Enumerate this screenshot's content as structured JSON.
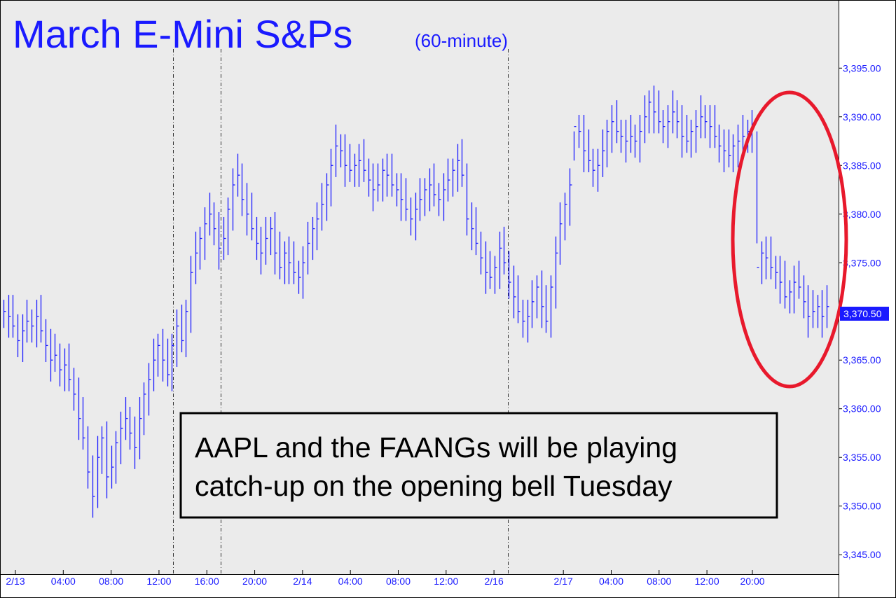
{
  "chart_data": {
    "type": "bar",
    "subtype": "hlc-bar",
    "title": "March E-Mini S&Ps",
    "subtitle": "(60-minute)",
    "ylim": [
      3343,
      3402
    ],
    "y_ticks": [
      3345,
      3350,
      3355,
      3360,
      3365,
      3370,
      3375,
      3380,
      3385,
      3390,
      3395
    ],
    "y_tick_labels": [
      "3,345.00",
      "3,350.00",
      "3,355.00",
      "3,360.00",
      "3,365.00",
      "3,370.00",
      "3,375.00",
      "3,380.00",
      "3,385.00",
      "3,390.00",
      "3,395.00"
    ],
    "x_tick_labels": [
      "2/13",
      "04:00",
      "08:00",
      "12:00",
      "16:00",
      "20:00",
      "2/14",
      "04:00",
      "08:00",
      "12:00",
      "2/16",
      "2/17",
      "04:00",
      "08:00",
      "12:00",
      "20:00"
    ],
    "session_breaks": [
      "16:00",
      "2/16",
      "12:00"
    ],
    "last_price_label": "3,370.50",
    "last_price": 3370.5,
    "annotation": {
      "line1": "AAPL and the FAANGs will be playing",
      "line2": "catch-up on the opening bell Tuesday"
    },
    "highlight": "ellipse",
    "grid": false,
    "series": [
      {
        "values": [
          3370.0,
          3369.5,
          3368.5,
          3367.0,
          3368.0,
          3369.0,
          3368.5,
          3369.5,
          3368.0,
          3366.5,
          3365.0,
          3365.5,
          3364.0,
          3364.5,
          3363.0,
          3361.5,
          3359.0,
          3357.0,
          3353.5,
          3351.0,
          3355.0,
          3357.0,
          3353.0,
          3354.0,
          3356.5,
          3358.0,
          3359.0,
          3357.5,
          3356.0,
          3359.0,
          3361.5,
          3363.0,
          3365.0,
          3366.5,
          3365.0,
          3363.5,
          3366.5,
          3368.5,
          3367.0,
          3370.0,
          3374.0,
          3376.0,
          3377.5,
          3379.0,
          3380.0,
          3378.5,
          3376.5,
          3377.5,
          3380.5,
          3383.0,
          3384.0,
          3381.5,
          3380.0,
          3378.5,
          3377.0,
          3376.0,
          3377.5,
          3378.5,
          3376.0,
          3374.5,
          3376.0,
          3375.0,
          3374.0,
          3373.5,
          3375.0,
          3377.0,
          3378.5,
          3379.5,
          3381.0,
          3383.0,
          3385.0,
          3387.0,
          3386.5,
          3385.0,
          3384.5,
          3385.0,
          3385.5,
          3384.5,
          3383.5,
          3382.5,
          3383.0,
          3384.5,
          3384.0,
          3383.0,
          3382.5,
          3381.5,
          3380.5,
          3379.5,
          3380.5,
          3381.5,
          3382.5,
          3383.0,
          3382.0,
          3381.5,
          3382.5,
          3383.5,
          3384.5,
          3385.5,
          3384.0,
          3379.5,
          3378.5,
          3377.0,
          3375.5,
          3374.0,
          3373.5,
          3374.5,
          3376.5,
          3375.0,
          3373.0,
          3371.5,
          3370.0,
          3369.0,
          3369.5,
          3371.0,
          3372.5,
          3370.5,
          3369.0,
          3372.5,
          3376.0,
          3379.0,
          3381.0,
          3383.0,
          3389.0,
          3388.5,
          3386.5,
          3385.5,
          3384.5,
          3385.0,
          3386.5,
          3388.5,
          3389.5,
          3388.5,
          3388.0,
          3387.5,
          3388.0,
          3387.5,
          3388.5,
          3390.0,
          3391.5,
          3390.5,
          3389.5,
          3389.0,
          3389.5,
          3390.5,
          3389.5,
          3388.0,
          3387.5,
          3388.5,
          3389.0,
          3390.0,
          3389.5,
          3389.0,
          3388.0,
          3387.0,
          3386.5,
          3386.0,
          3387.0,
          3387.5,
          3388.0,
          3388.5,
          3389.0,
          3374.5,
          3376.0,
          3375.5,
          3374.5,
          3374.0,
          3373.0,
          3371.5,
          3372.0,
          3373.0,
          3372.5,
          3371.0,
          3369.5,
          3370.0,
          3370.5,
          3369.5,
          3370.5
        ]
      }
    ]
  }
}
